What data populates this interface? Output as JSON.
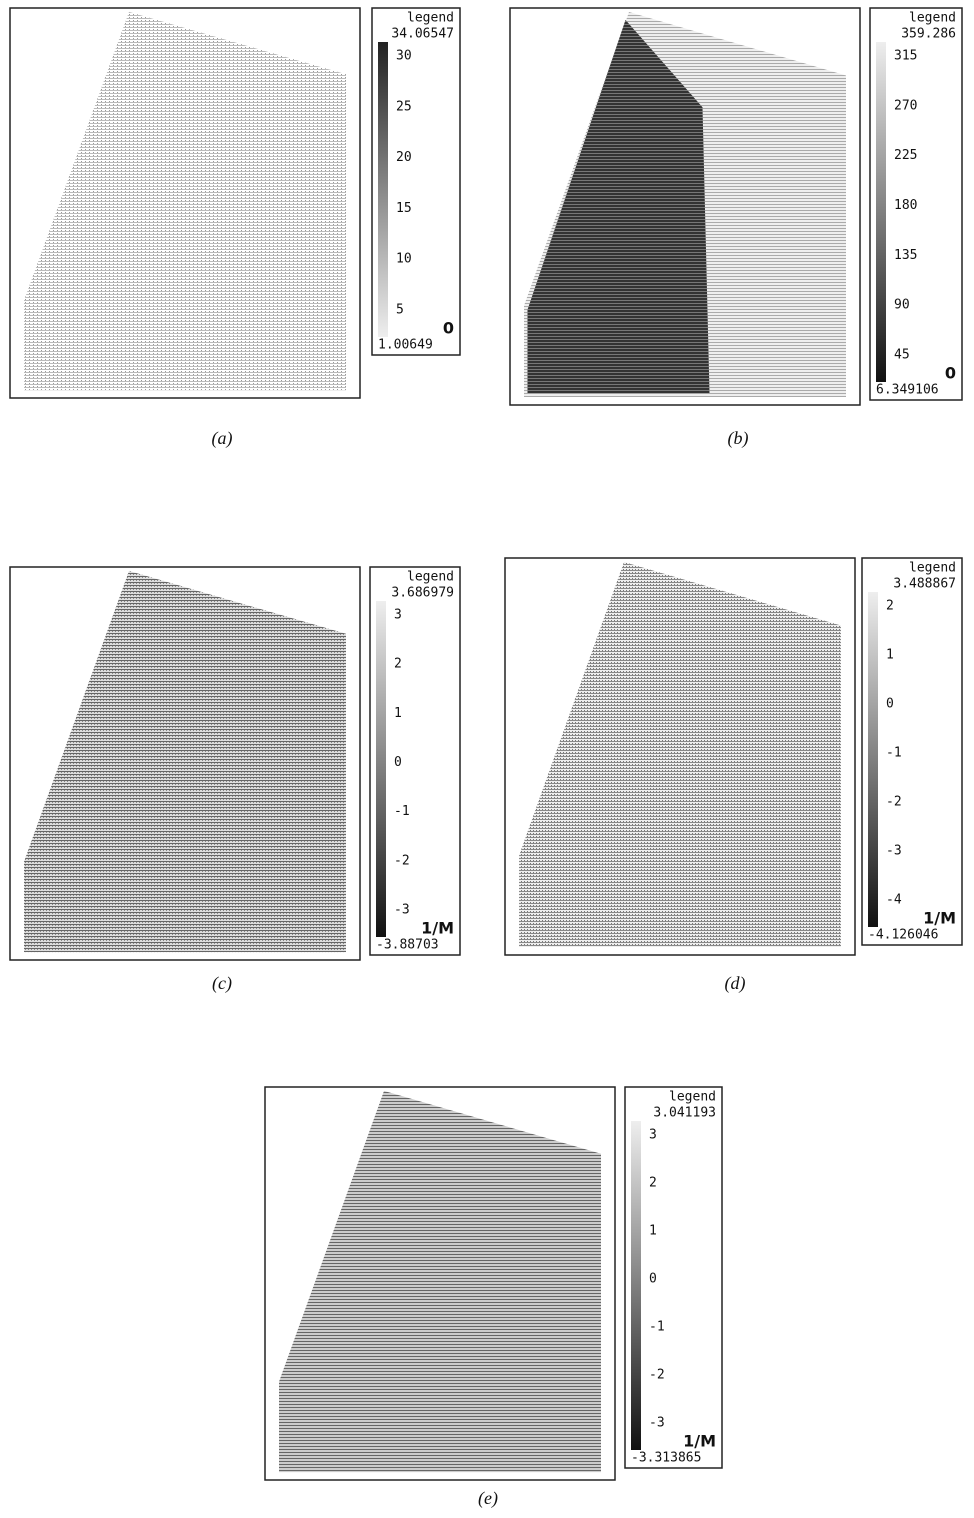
{
  "panels": [
    {
      "caption": "(a)",
      "legend": {
        "title": "legend",
        "max": "34.06547",
        "ticks": [
          "30",
          "25",
          "20",
          "15",
          "10",
          "5"
        ],
        "min": "1.00649",
        "unit": "0"
      }
    },
    {
      "caption": "(b)",
      "legend": {
        "title": "legend",
        "max": "359.286",
        "ticks": [
          "315",
          "270",
          "225",
          "180",
          "135",
          "90",
          "45"
        ],
        "min": "6.349106",
        "unit": "0"
      }
    },
    {
      "caption": "(c)",
      "legend": {
        "title": "legend",
        "max": "3.686979",
        "ticks": [
          "3",
          "2",
          "1",
          "0",
          "-1",
          "-2",
          "-3"
        ],
        "min": "-3.88703",
        "unit": "1/M"
      }
    },
    {
      "caption": "(d)",
      "legend": {
        "title": "legend",
        "max": "3.488867",
        "ticks": [
          "2",
          "1",
          "0",
          "-1",
          "-2",
          "-3",
          "-4"
        ],
        "min": "-4.126046",
        "unit": "1/M"
      }
    },
    {
      "caption": "(e)",
      "legend": {
        "title": "legend",
        "max": "3.041193",
        "ticks": [
          "3",
          "2",
          "1",
          "0",
          "-1",
          "-2",
          "-3"
        ],
        "min": "-3.313865",
        "unit": "1/M"
      }
    }
  ]
}
